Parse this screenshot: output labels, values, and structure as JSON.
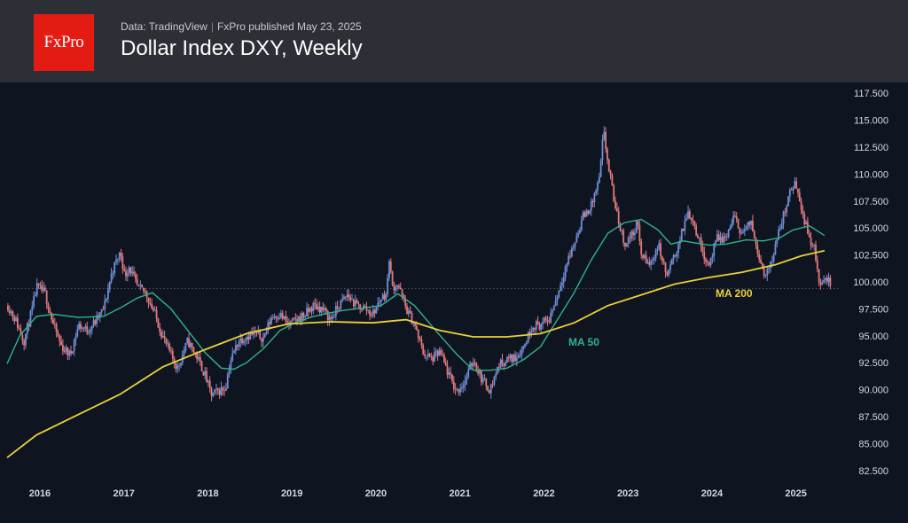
{
  "header": {
    "logo_text": "FxPro",
    "source": "Data: TradingView",
    "publisher": "FxPro published May 23, 2025",
    "title": "Dollar Index DXY, Weekly"
  },
  "colors": {
    "background": "#0f1421",
    "header_bg": "#2d2f36",
    "logo_red": "#e41b13",
    "candle_up": "#6f8fd6",
    "candle_down": "#e07a7a",
    "ma50": "#2fb38a",
    "ma200": "#e8d13a",
    "axis_text": "#d6d8de"
  },
  "chart_data": {
    "type": "candlestick",
    "timeframe": "weekly",
    "ylim": [
      81.5,
      118.5
    ],
    "xlim": [
      2015.65,
      2025.55
    ],
    "y_ticks": [
      "82.500",
      "85.000",
      "87.500",
      "90.000",
      "92.500",
      "95.000",
      "97.500",
      "100.000",
      "102.500",
      "105.000",
      "107.500",
      "110.000",
      "112.500",
      "115.000",
      "117.500"
    ],
    "x_ticks": [
      "2016",
      "2017",
      "2018",
      "2019",
      "2020",
      "2021",
      "2022",
      "2023",
      "2024",
      "2025"
    ],
    "last_price_level": 99.4,
    "price_path": [
      [
        2015.66,
        97.8
      ],
      [
        2015.75,
        96.5
      ],
      [
        2015.85,
        94.5
      ],
      [
        2015.95,
        97.5
      ],
      [
        2016.0,
        99.5
      ],
      [
        2016.1,
        99.0
      ],
      [
        2016.2,
        96.0
      ],
      [
        2016.3,
        94.0
      ],
      [
        2016.4,
        93.2
      ],
      [
        2016.5,
        96.0
      ],
      [
        2016.6,
        95.5
      ],
      [
        2016.7,
        96.3
      ],
      [
        2016.8,
        97.5
      ],
      [
        2016.9,
        101.0
      ],
      [
        2017.0,
        102.8
      ],
      [
        2017.05,
        100.5
      ],
      [
        2017.1,
        101.5
      ],
      [
        2017.2,
        99.5
      ],
      [
        2017.3,
        99.0
      ],
      [
        2017.4,
        97.2
      ],
      [
        2017.5,
        95.0
      ],
      [
        2017.6,
        93.2
      ],
      [
        2017.68,
        92.0
      ],
      [
        2017.75,
        93.5
      ],
      [
        2017.8,
        94.5
      ],
      [
        2017.9,
        93.2
      ],
      [
        2018.0,
        91.5
      ],
      [
        2018.08,
        89.5
      ],
      [
        2018.15,
        89.8
      ],
      [
        2018.25,
        90.2
      ],
      [
        2018.3,
        92.5
      ],
      [
        2018.4,
        94.5
      ],
      [
        2018.5,
        95.0
      ],
      [
        2018.6,
        95.2
      ],
      [
        2018.7,
        94.8
      ],
      [
        2018.8,
        96.8
      ],
      [
        2018.9,
        97.0
      ],
      [
        2019.0,
        96.0
      ],
      [
        2019.1,
        96.5
      ],
      [
        2019.2,
        97.0
      ],
      [
        2019.3,
        97.8
      ],
      [
        2019.4,
        97.5
      ],
      [
        2019.5,
        96.5
      ],
      [
        2019.6,
        97.8
      ],
      [
        2019.7,
        98.8
      ],
      [
        2019.8,
        97.8
      ],
      [
        2019.9,
        97.6
      ],
      [
        2020.0,
        97.0
      ],
      [
        2020.1,
        98.5
      ],
      [
        2020.17,
        99.0
      ],
      [
        2020.2,
        102.5
      ],
      [
        2020.23,
        99.5
      ],
      [
        2020.3,
        99.8
      ],
      [
        2020.4,
        97.5
      ],
      [
        2020.5,
        96.0
      ],
      [
        2020.6,
        93.5
      ],
      [
        2020.7,
        92.8
      ],
      [
        2020.8,
        93.5
      ],
      [
        2020.9,
        91.5
      ],
      [
        2021.0,
        89.8
      ],
      [
        2021.1,
        90.8
      ],
      [
        2021.2,
        92.8
      ],
      [
        2021.3,
        91.0
      ],
      [
        2021.4,
        90.0
      ],
      [
        2021.5,
        92.3
      ],
      [
        2021.6,
        92.8
      ],
      [
        2021.7,
        93.0
      ],
      [
        2021.8,
        94.0
      ],
      [
        2021.9,
        96.0
      ],
      [
        2022.0,
        96.0
      ],
      [
        2022.1,
        96.5
      ],
      [
        2022.2,
        98.8
      ],
      [
        2022.3,
        101.5
      ],
      [
        2022.4,
        103.5
      ],
      [
        2022.5,
        106.0
      ],
      [
        2022.6,
        107.0
      ],
      [
        2022.7,
        109.5
      ],
      [
        2022.75,
        114.0
      ],
      [
        2022.8,
        111.0
      ],
      [
        2022.9,
        106.5
      ],
      [
        2023.0,
        103.5
      ],
      [
        2023.1,
        104.5
      ],
      [
        2023.15,
        105.5
      ],
      [
        2023.2,
        102.5
      ],
      [
        2023.3,
        101.5
      ],
      [
        2023.4,
        103.5
      ],
      [
        2023.5,
        100.5
      ],
      [
        2023.6,
        102.5
      ],
      [
        2023.7,
        105.0
      ],
      [
        2023.75,
        106.5
      ],
      [
        2023.8,
        106.0
      ],
      [
        2023.9,
        103.5
      ],
      [
        2024.0,
        101.5
      ],
      [
        2024.1,
        104.0
      ],
      [
        2024.2,
        104.0
      ],
      [
        2024.3,
        106.0
      ],
      [
        2024.4,
        104.5
      ],
      [
        2024.5,
        105.5
      ],
      [
        2024.55,
        104.0
      ],
      [
        2024.65,
        101.0
      ],
      [
        2024.7,
        100.8
      ],
      [
        2024.8,
        103.5
      ],
      [
        2024.9,
        106.5
      ],
      [
        2025.0,
        109.0
      ],
      [
        2025.05,
        109.0
      ],
      [
        2025.1,
        107.0
      ],
      [
        2025.2,
        104.0
      ],
      [
        2025.25,
        103.5
      ],
      [
        2025.3,
        100.5
      ],
      [
        2025.35,
        99.5
      ],
      [
        2025.4,
        100.5
      ],
      [
        2025.45,
        99.8
      ]
    ],
    "series": [
      {
        "name": "MA 50",
        "points": [
          [
            2015.65,
            92.4
          ],
          [
            2015.8,
            95.0
          ],
          [
            2016.0,
            96.8
          ],
          [
            2016.2,
            97.0
          ],
          [
            2016.5,
            96.7
          ],
          [
            2016.8,
            96.8
          ],
          [
            2017.0,
            97.6
          ],
          [
            2017.2,
            98.5
          ],
          [
            2017.38,
            99.0
          ],
          [
            2017.6,
            97.5
          ],
          [
            2017.8,
            95.5
          ],
          [
            2018.0,
            93.5
          ],
          [
            2018.2,
            92.0
          ],
          [
            2018.35,
            91.9
          ],
          [
            2018.5,
            92.5
          ],
          [
            2018.7,
            93.8
          ],
          [
            2018.9,
            95.5
          ],
          [
            2019.1,
            96.3
          ],
          [
            2019.3,
            96.8
          ],
          [
            2019.6,
            97.3
          ],
          [
            2019.9,
            97.6
          ],
          [
            2020.1,
            97.8
          ],
          [
            2020.3,
            98.9
          ],
          [
            2020.5,
            97.8
          ],
          [
            2020.75,
            95.5
          ],
          [
            2021.0,
            93.3
          ],
          [
            2021.2,
            91.8
          ],
          [
            2021.4,
            91.8
          ],
          [
            2021.6,
            92.0
          ],
          [
            2021.8,
            92.8
          ],
          [
            2022.0,
            94.0
          ],
          [
            2022.2,
            96.5
          ],
          [
            2022.4,
            99.0
          ],
          [
            2022.6,
            102.0
          ],
          [
            2022.8,
            104.5
          ],
          [
            2023.0,
            105.5
          ],
          [
            2023.2,
            105.8
          ],
          [
            2023.4,
            104.8
          ],
          [
            2023.55,
            103.5
          ],
          [
            2023.7,
            103.8
          ],
          [
            2023.85,
            103.6
          ],
          [
            2024.0,
            103.4
          ],
          [
            2024.2,
            103.5
          ],
          [
            2024.45,
            103.9
          ],
          [
            2024.65,
            103.8
          ],
          [
            2024.85,
            104.1
          ],
          [
            2025.0,
            104.8
          ],
          [
            2025.2,
            105.2
          ],
          [
            2025.38,
            104.3
          ]
        ]
      },
      {
        "name": "MA 200",
        "points": [
          [
            2015.65,
            83.7
          ],
          [
            2016.0,
            85.8
          ],
          [
            2016.5,
            87.7
          ],
          [
            2017.0,
            89.6
          ],
          [
            2017.5,
            92.1
          ],
          [
            2018.0,
            93.7
          ],
          [
            2018.5,
            95.2
          ],
          [
            2019.0,
            96.1
          ],
          [
            2019.5,
            96.3
          ],
          [
            2020.0,
            96.2
          ],
          [
            2020.4,
            96.5
          ],
          [
            2020.8,
            95.5
          ],
          [
            2021.2,
            94.9
          ],
          [
            2021.6,
            94.9
          ],
          [
            2022.0,
            95.2
          ],
          [
            2022.4,
            96.2
          ],
          [
            2022.8,
            97.8
          ],
          [
            2023.2,
            98.8
          ],
          [
            2023.6,
            99.8
          ],
          [
            2024.0,
            100.4
          ],
          [
            2024.4,
            100.9
          ],
          [
            2024.8,
            101.6
          ],
          [
            2025.1,
            102.4
          ],
          [
            2025.38,
            102.9
          ]
        ]
      }
    ],
    "annotations": [
      "MA 50",
      "MA 200"
    ]
  }
}
